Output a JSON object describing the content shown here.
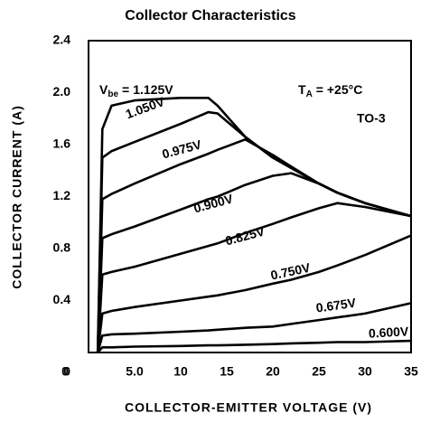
{
  "chart_data": {
    "type": "line",
    "title": "Collector Characteristics",
    "x_label": "COLLECTOR-EMITTER VOLTAGE (V)",
    "y_label": "COLLECTOR CURRENT (A)",
    "annotations": {
      "vbe": "V",
      "vbe_sub": "be",
      "vbe_eq": "=",
      "ta": "T",
      "ta_sub": "A",
      "ta_val": "= +25°C",
      "package": "TO-3"
    },
    "x": [
      1,
      1.5,
      2.5,
      5,
      10,
      13,
      14,
      17,
      20,
      22,
      25,
      27,
      30,
      35
    ],
    "series": [
      {
        "name": "1.125V",
        "color": "#000000",
        "values": [
          0,
          1.72,
          1.9,
          1.94,
          1.96,
          1.96,
          1.9,
          1.66,
          1.5,
          1.42,
          1.3,
          1.23,
          1.15,
          1.05
        ]
      },
      {
        "name": "1.050V",
        "color": "#000000",
        "values": [
          0,
          1.5,
          1.55,
          1.62,
          1.76,
          1.85,
          1.84,
          1.66,
          1.5,
          1.42,
          1.3,
          1.23,
          1.15,
          1.05
        ]
      },
      {
        "name": "0.975V",
        "color": "#000000",
        "values": [
          0,
          1.18,
          1.22,
          1.3,
          1.45,
          1.53,
          1.56,
          1.64,
          1.52,
          1.43,
          1.3,
          1.23,
          1.15,
          1.05
        ]
      },
      {
        "name": "0.900V",
        "color": "#000000",
        "values": [
          0,
          0.88,
          0.91,
          0.97,
          1.1,
          1.18,
          1.2,
          1.29,
          1.36,
          1.38,
          1.3,
          1.23,
          1.15,
          1.05
        ]
      },
      {
        "name": "0.825V",
        "color": "#000000",
        "values": [
          0,
          0.6,
          0.62,
          0.66,
          0.76,
          0.82,
          0.84,
          0.92,
          0.99,
          1.04,
          1.11,
          1.15,
          1.12,
          1.05
        ]
      },
      {
        "name": "0.750V",
        "color": "#000000",
        "values": [
          0,
          0.3,
          0.32,
          0.35,
          0.4,
          0.43,
          0.44,
          0.48,
          0.53,
          0.56,
          0.62,
          0.67,
          0.75,
          0.9
        ]
      },
      {
        "name": "0.675V",
        "color": "#000000",
        "values": [
          0,
          0.13,
          0.14,
          0.145,
          0.16,
          0.17,
          0.175,
          0.19,
          0.2,
          0.22,
          0.25,
          0.27,
          0.3,
          0.38
        ]
      },
      {
        "name": "0.600V",
        "color": "#000000",
        "values": [
          0,
          0.04,
          0.04,
          0.045,
          0.05,
          0.055,
          0.055,
          0.06,
          0.065,
          0.07,
          0.075,
          0.08,
          0.08,
          0.09
        ]
      }
    ],
    "xlim": [
      0,
      35
    ],
    "ylim": [
      0,
      2.4
    ],
    "xticks": [
      0,
      {
        "value": 5,
        "label": "5.0"
      },
      10,
      15,
      20,
      25,
      30,
      35
    ],
    "yticks": [
      0,
      0.4,
      0.8,
      1.2,
      1.6,
      {
        "value": 2,
        "label": "2.0"
      },
      2.4
    ],
    "grid": false
  }
}
